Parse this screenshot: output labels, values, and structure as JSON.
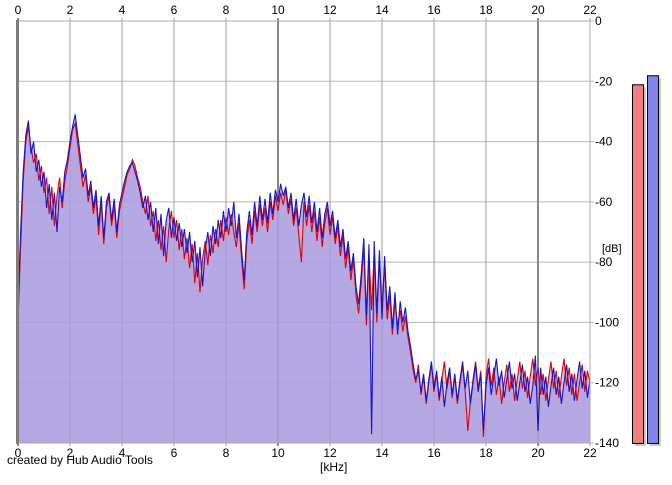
{
  "footer": {
    "credit_text": "created by Hub Audio Tools"
  },
  "chart_data": [
    {
      "type": "line",
      "xlabel": "[kHz]",
      "ylabel": "[dB]",
      "xlim": [
        0,
        22
      ],
      "ylim": [
        -140,
        0
      ],
      "x_ticks": [
        0,
        2,
        4,
        6,
        8,
        10,
        12,
        14,
        16,
        18,
        20,
        22
      ],
      "y_ticks": [
        0,
        -20,
        -40,
        -60,
        -80,
        -100,
        -120,
        -140
      ],
      "grid": true,
      "x_start_khz": 0,
      "x_step_khz": 0.1,
      "series": [
        {
          "name": "red-trace",
          "color": "#e10000",
          "fill": "rgba(235,150,150,0.55)",
          "values": [
            -100,
            -75,
            -53,
            -40,
            -35,
            -42,
            -47,
            -44,
            -53,
            -48,
            -57,
            -52,
            -64,
            -55,
            -68,
            -58,
            -52,
            -62,
            -53,
            -48,
            -42,
            -36,
            -34,
            -41,
            -48,
            -55,
            -51,
            -60,
            -55,
            -64,
            -58,
            -71,
            -60,
            -74,
            -62,
            -58,
            -68,
            -61,
            -72,
            -63,
            -59,
            -55,
            -51,
            -49,
            -46,
            -48,
            -52,
            -55,
            -60,
            -64,
            -58,
            -68,
            -63,
            -73,
            -66,
            -76,
            -68,
            -80,
            -69,
            -63,
            -72,
            -66,
            -76,
            -69,
            -79,
            -72,
            -82,
            -74,
            -87,
            -77,
            -90,
            -79,
            -73,
            -81,
            -71,
            -77,
            -69,
            -75,
            -66,
            -73,
            -65,
            -71,
            -64,
            -70,
            -75,
            -67,
            -79,
            -89,
            -73,
            -66,
            -74,
            -63,
            -70,
            -61,
            -68,
            -62,
            -70,
            -60,
            -66,
            -58,
            -63,
            -57,
            -61,
            -56,
            -64,
            -59,
            -68,
            -62,
            -71,
            -80,
            -60,
            -68,
            -61,
            -70,
            -63,
            -73,
            -65,
            -75,
            -67,
            -62,
            -71,
            -65,
            -74,
            -68,
            -78,
            -71,
            -82,
            -75,
            -86,
            -79,
            -91,
            -97,
            -87,
            -75,
            -101,
            -77,
            -96,
            -76,
            -100,
            -79,
            -95,
            -81,
            -99,
            -91,
            -104,
            -93,
            -101,
            -96,
            -103,
            -98,
            -105,
            -110,
            -116,
            -120,
            -114,
            -124,
            -118,
            -127,
            -120,
            -114,
            -123,
            -117,
            -126,
            -119,
            -113,
            -122,
            -116,
            -125,
            -118,
            -127,
            -120,
            -114,
            -123,
            -136,
            -126,
            -119,
            -113,
            -122,
            -116,
            -138,
            -118,
            -112,
            -121,
            -115,
            -124,
            -118,
            -127,
            -120,
            -114,
            -123,
            -117,
            -126,
            -119,
            -113,
            -122,
            -116,
            -125,
            -118,
            -112,
            -121,
            -115,
            -124,
            -117,
            -126,
            -119,
            -113,
            -122,
            -116,
            -125,
            -118,
            -112,
            -121,
            -115,
            -124,
            -117,
            -126,
            -120,
            -114,
            -123,
            -116,
            -120
          ]
        },
        {
          "name": "blue-trace",
          "color": "#1414cc",
          "fill": "rgba(158,158,238,0.72)",
          "values": [
            -95,
            -70,
            -50,
            -38,
            -33,
            -44,
            -40,
            -50,
            -46,
            -55,
            -50,
            -62,
            -54,
            -66,
            -57,
            -70,
            -55,
            -60,
            -50,
            -46,
            -40,
            -35,
            -31,
            -38,
            -45,
            -52,
            -49,
            -58,
            -53,
            -62,
            -56,
            -68,
            -58,
            -72,
            -60,
            -57,
            -66,
            -59,
            -70,
            -61,
            -57,
            -53,
            -50,
            -48,
            -47,
            -50,
            -53,
            -57,
            -62,
            -58,
            -66,
            -60,
            -70,
            -62,
            -74,
            -64,
            -78,
            -66,
            -62,
            -72,
            -65,
            -73,
            -67,
            -75,
            -69,
            -77,
            -70,
            -80,
            -73,
            -85,
            -75,
            -88,
            -76,
            -70,
            -78,
            -68,
            -74,
            -66,
            -72,
            -63,
            -70,
            -62,
            -68,
            -60,
            -72,
            -64,
            -76,
            -86,
            -70,
            -63,
            -71,
            -60,
            -68,
            -58,
            -66,
            -59,
            -67,
            -57,
            -64,
            -56,
            -60,
            -54,
            -58,
            -55,
            -62,
            -57,
            -66,
            -59,
            -68,
            -61,
            -57,
            -65,
            -58,
            -67,
            -60,
            -70,
            -62,
            -72,
            -64,
            -60,
            -68,
            -63,
            -72,
            -66,
            -75,
            -69,
            -79,
            -73,
            -83,
            -77,
            -88,
            -94,
            -84,
            -72,
            -98,
            -74,
            -137,
            -73,
            -97,
            -76,
            -99,
            -78,
            -96,
            -88,
            -102,
            -90,
            -104,
            -93,
            -100,
            -95,
            -103,
            -108,
            -114,
            -119,
            -116,
            -123,
            -117,
            -126,
            -119,
            -113,
            -122,
            -116,
            -125,
            -118,
            -128,
            -120,
            -115,
            -124,
            -117,
            -126,
            -119,
            -113,
            -122,
            -116,
            -127,
            -120,
            -114,
            -123,
            -117,
            -136,
            -121,
            -115,
            -124,
            -118,
            -112,
            -121,
            -116,
            -125,
            -119,
            -113,
            -122,
            -117,
            -126,
            -120,
            -114,
            -123,
            -118,
            -127,
            -121,
            -111,
            -136,
            -115,
            -124,
            -118,
            -128,
            -121,
            -115,
            -124,
            -118,
            -127,
            -120,
            -114,
            -123,
            -117,
            -126,
            -119,
            -113,
            -122,
            -116,
            -125,
            -119
          ]
        }
      ]
    },
    {
      "type": "bar",
      "name": "level-meters",
      "categories": [
        "red-level",
        "blue-level"
      ],
      "values": [
        -21,
        -18
      ],
      "colors": [
        "#f08080",
        "#8084ec"
      ],
      "shadow_color": "#c8c8c8",
      "ylim": [
        -140,
        0
      ],
      "ylabel": "[dB]"
    }
  ]
}
